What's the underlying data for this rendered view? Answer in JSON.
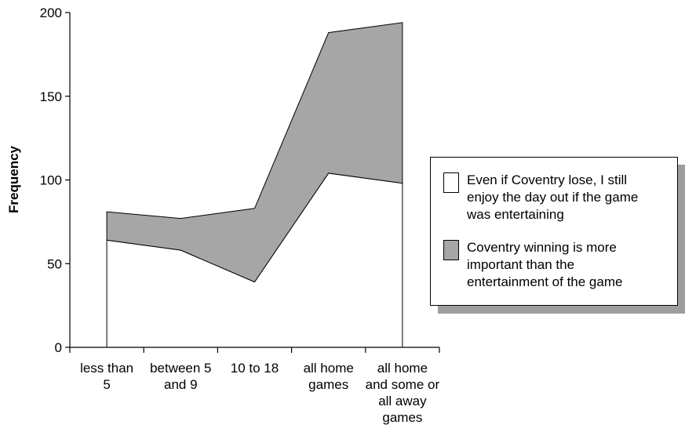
{
  "chart_data": {
    "type": "area",
    "stacked": true,
    "ylabel": "Frequency",
    "xlabel": "",
    "ylim": [
      0,
      200
    ],
    "yticks": [
      "0",
      "50",
      "100",
      "150",
      "200"
    ],
    "categories": [
      [
        "less than",
        "5"
      ],
      [
        "between 5",
        "and 9"
      ],
      [
        "10 to 18"
      ],
      [
        "all home",
        "games"
      ],
      [
        "all home",
        "and some or",
        "all away",
        "games"
      ]
    ],
    "series": [
      {
        "name": "Even if Coventry lose, I still enjoy the day out if the game was entertaining",
        "values": [
          64,
          58,
          39,
          104,
          98
        ],
        "color": "#ffffff"
      },
      {
        "name": "Coventry winning is more important than the entertainment of the game",
        "values": [
          17,
          19,
          44,
          84,
          96
        ],
        "color": "#a6a6a6"
      }
    ],
    "legend": {
      "position": "right",
      "items": [
        [
          "Even if Coventry lose, I still",
          "enjoy the day out if the game",
          "was entertaining"
        ],
        [
          "Coventry winning is more",
          "important than the",
          "entertainment of the game"
        ]
      ]
    }
  }
}
